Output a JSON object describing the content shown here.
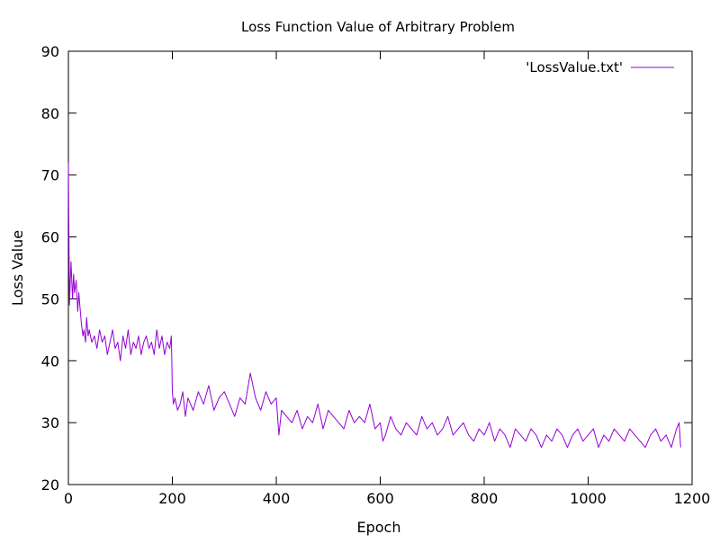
{
  "chart_data": {
    "type": "line",
    "title": "Loss Function Value of Arbitrary Problem",
    "xlabel": "Epoch",
    "ylabel": "Loss Value",
    "xlim": [
      0,
      1200
    ],
    "ylim": [
      20,
      90
    ],
    "xticks": [
      0,
      200,
      400,
      600,
      800,
      1000,
      1200
    ],
    "yticks": [
      20,
      30,
      40,
      50,
      60,
      70,
      80,
      90
    ],
    "grid": false,
    "legend_position": "top-right",
    "series": [
      {
        "name": "'LossValue.txt'",
        "color": "#9400d3",
        "x": [
          0,
          2,
          5,
          8,
          10,
          12,
          15,
          18,
          20,
          22,
          25,
          28,
          30,
          33,
          35,
          38,
          40,
          45,
          50,
          55,
          60,
          65,
          70,
          75,
          80,
          85,
          90,
          95,
          100,
          105,
          110,
          115,
          120,
          125,
          130,
          135,
          140,
          145,
          150,
          155,
          160,
          165,
          170,
          175,
          180,
          185,
          190,
          195,
          198,
          199,
          200,
          202,
          205,
          210,
          215,
          220,
          225,
          230,
          240,
          250,
          260,
          270,
          280,
          290,
          300,
          310,
          320,
          330,
          340,
          350,
          360,
          370,
          380,
          390,
          400,
          405,
          410,
          420,
          430,
          440,
          450,
          460,
          470,
          480,
          490,
          500,
          510,
          520,
          530,
          540,
          550,
          560,
          570,
          580,
          590,
          600,
          605,
          610,
          620,
          630,
          640,
          650,
          660,
          670,
          680,
          690,
          700,
          710,
          720,
          730,
          740,
          750,
          760,
          770,
          780,
          790,
          800,
          810,
          820,
          830,
          840,
          850,
          860,
          870,
          880,
          890,
          900,
          910,
          920,
          930,
          940,
          950,
          960,
          970,
          980,
          990,
          1000,
          1010,
          1020,
          1030,
          1040,
          1050,
          1060,
          1070,
          1080,
          1090,
          1100,
          1110,
          1120,
          1130,
          1140,
          1150,
          1160,
          1170,
          1175,
          1178
        ],
        "y": [
          72,
          49,
          56,
          50,
          54,
          51,
          53,
          48,
          51,
          49,
          46,
          44,
          45,
          43,
          47,
          44,
          45,
          43,
          44,
          42,
          45,
          43,
          44,
          41,
          43,
          45,
          42,
          43,
          40,
          44,
          42,
          45,
          41,
          43,
          42,
          44,
          41,
          43,
          44,
          42,
          43,
          41,
          45,
          42,
          44,
          41,
          43,
          42,
          44,
          40,
          35,
          33,
          34,
          32,
          33,
          35,
          31,
          34,
          32,
          35,
          33,
          36,
          32,
          34,
          35,
          33,
          31,
          34,
          33,
          38,
          34,
          32,
          35,
          33,
          34,
          28,
          32,
          31,
          30,
          32,
          29,
          31,
          30,
          33,
          29,
          32,
          31,
          30,
          29,
          32,
          30,
          31,
          30,
          33,
          29,
          30,
          27,
          28,
          31,
          29,
          28,
          30,
          29,
          28,
          31,
          29,
          30,
          28,
          29,
          31,
          28,
          29,
          30,
          28,
          27,
          29,
          28,
          30,
          27,
          29,
          28,
          26,
          29,
          28,
          27,
          29,
          28,
          26,
          28,
          27,
          29,
          28,
          26,
          28,
          29,
          27,
          28,
          29,
          26,
          28,
          27,
          29,
          28,
          27,
          29,
          28,
          27,
          26,
          28,
          29,
          27,
          28,
          26,
          29,
          30,
          26
        ]
      }
    ]
  }
}
